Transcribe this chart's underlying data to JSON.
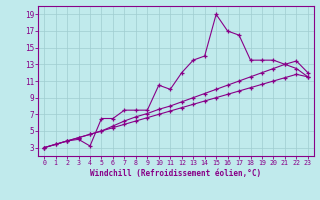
{
  "xlabel": "Windchill (Refroidissement éolien,°C)",
  "bg_color": "#c0eaec",
  "grid_color": "#a0cdd0",
  "line_color": "#880088",
  "xlim_min": -0.5,
  "xlim_max": 23.5,
  "ylim_min": 2.0,
  "ylim_max": 20.0,
  "xticks": [
    0,
    1,
    2,
    3,
    4,
    5,
    6,
    7,
    8,
    9,
    10,
    11,
    12,
    13,
    14,
    15,
    16,
    17,
    18,
    19,
    20,
    21,
    22,
    23
  ],
  "yticks": [
    3,
    5,
    7,
    9,
    11,
    13,
    15,
    17,
    19
  ],
  "line1_x": [
    0,
    1,
    2,
    3,
    4,
    5,
    6,
    7,
    8,
    9,
    10,
    11,
    12,
    13,
    14,
    15,
    16,
    17,
    18,
    19,
    20,
    21,
    22,
    23
  ],
  "line1_y": [
    3.0,
    3.4,
    3.8,
    4.2,
    4.6,
    5.0,
    5.4,
    5.8,
    6.2,
    6.6,
    7.0,
    7.4,
    7.8,
    8.2,
    8.6,
    9.0,
    9.4,
    9.8,
    10.2,
    10.6,
    11.0,
    11.4,
    11.8,
    11.5
  ],
  "line2_x": [
    0,
    1,
    2,
    3,
    4,
    5,
    6,
    7,
    8,
    9,
    10,
    11,
    12,
    13,
    14,
    15,
    16,
    17,
    18,
    19,
    20,
    21,
    22,
    23
  ],
  "line2_y": [
    3.0,
    3.4,
    3.8,
    4.2,
    4.6,
    5.0,
    5.6,
    6.2,
    6.7,
    7.1,
    7.6,
    8.0,
    8.5,
    9.0,
    9.5,
    10.0,
    10.5,
    11.0,
    11.5,
    12.0,
    12.5,
    13.0,
    13.4,
    12.0
  ],
  "line3_x": [
    0,
    2,
    3,
    4,
    5,
    6,
    7,
    8,
    9,
    10,
    11,
    12,
    13,
    14,
    15,
    16,
    17,
    18,
    19,
    20,
    21,
    22,
    23
  ],
  "line3_y": [
    3.0,
    3.8,
    4.0,
    3.2,
    6.5,
    6.5,
    7.5,
    7.5,
    7.5,
    10.5,
    10.0,
    12.0,
    13.5,
    14.0,
    19.0,
    17.0,
    16.5,
    13.5,
    13.5,
    13.5,
    13.0,
    12.5,
    11.5
  ]
}
